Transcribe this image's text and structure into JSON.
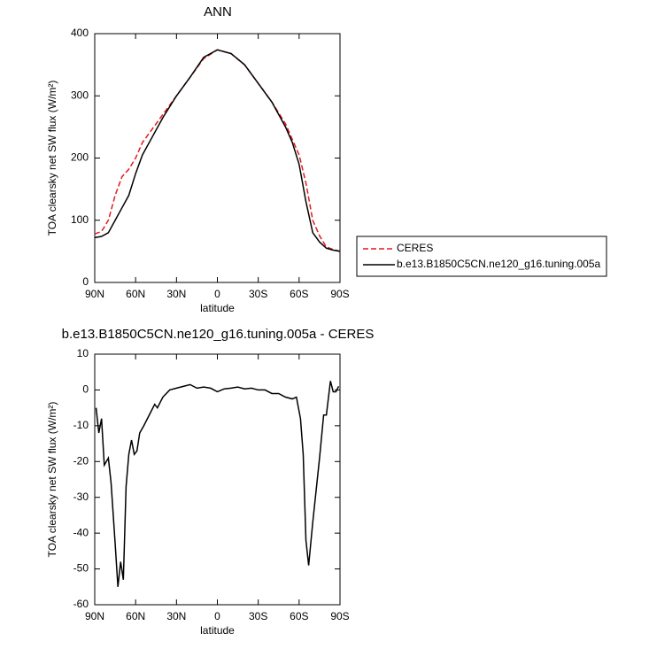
{
  "chart_data": [
    {
      "type": "line",
      "title": "ANN",
      "xlabel": "latitude",
      "ylabel": "TOA clearsky net SW flux (W/m²)",
      "x": [
        90,
        85,
        80,
        75,
        70,
        65,
        60,
        55,
        50,
        40,
        30,
        20,
        10,
        0,
        -10,
        -20,
        -30,
        -40,
        -50,
        -55,
        -60,
        -65,
        -70,
        -75,
        -80,
        -85,
        -90
      ],
      "xlim": [
        90,
        -90
      ],
      "xticks": [
        {
          "value": 90,
          "label": "90N"
        },
        {
          "value": 60,
          "label": "60N"
        },
        {
          "value": 30,
          "label": "30N"
        },
        0,
        {
          "value": -30,
          "label": "30S"
        },
        {
          "value": -60,
          "label": "60S"
        },
        {
          "value": -90,
          "label": "90S"
        }
      ],
      "ylim": [
        0,
        400
      ],
      "yticks": [
        0,
        100,
        200,
        300,
        400
      ],
      "series": [
        {
          "name": "CERES",
          "color": "#e41a1c",
          "dashed": true,
          "values": [
            78,
            82,
            100,
            140,
            170,
            182,
            200,
            225,
            240,
            270,
            300,
            330,
            360,
            374,
            368,
            350,
            320,
            290,
            255,
            230,
            205,
            160,
            100,
            75,
            57,
            53,
            50
          ]
        },
        {
          "name": "b.e13.B1850C5CN.ne120_g16.tuning.005a",
          "color": "#000000",
          "dashed": false,
          "values": [
            72,
            74,
            80,
            100,
            120,
            140,
            175,
            205,
            225,
            265,
            300,
            330,
            362,
            374,
            368,
            350,
            320,
            290,
            250,
            225,
            190,
            130,
            80,
            65,
            55,
            52,
            50
          ]
        }
      ]
    },
    {
      "type": "line",
      "title": "b.e13.B1850C5CN.ne120_g16.tuning.005a - CERES",
      "xlabel": "latitude",
      "ylabel": "TOA clearsky net SW flux (W/m²)",
      "x": [
        89,
        87,
        85,
        83,
        80,
        78,
        75,
        73,
        71,
        69,
        67,
        65,
        63,
        61,
        59,
        57,
        54,
        50,
        46,
        44,
        40,
        35,
        30,
        25,
        20,
        15,
        10,
        5,
        0,
        -5,
        -10,
        -15,
        -20,
        -25,
        -30,
        -35,
        -40,
        -45,
        -50,
        -55,
        -58,
        -61,
        -63,
        -65,
        -67,
        -70,
        -75,
        -78,
        -80,
        -83,
        -85,
        -87,
        -89
      ],
      "values": [
        -5,
        -12,
        -8,
        -21,
        -19,
        -26,
        -43,
        -55,
        -48,
        -53,
        -27,
        -18,
        -14,
        -18,
        -17,
        -12,
        -10,
        -7,
        -4,
        -5,
        -2,
        0,
        0.5,
        1,
        1.5,
        0.5,
        0.8,
        0.5,
        -0.5,
        0.3,
        0.5,
        0.8,
        0.3,
        0.5,
        0,
        0,
        -1,
        -1,
        -2,
        -2.5,
        -2,
        -8,
        -18,
        -42,
        -49,
        -37,
        -19,
        -7,
        -7,
        2.5,
        -0.5,
        -0.5,
        1
      ],
      "color": "#000000",
      "xlim": [
        90,
        -90
      ],
      "xticks": [
        {
          "value": 90,
          "label": "90N"
        },
        {
          "value": 60,
          "label": "60N"
        },
        {
          "value": 30,
          "label": "30N"
        },
        0,
        {
          "value": -30,
          "label": "30S"
        },
        {
          "value": -60,
          "label": "60S"
        },
        {
          "value": -90,
          "label": "90S"
        }
      ],
      "ylim": [
        -60,
        10
      ],
      "yticks": [
        -60,
        -50,
        -40,
        -30,
        -20,
        -10,
        0,
        10
      ]
    }
  ]
}
